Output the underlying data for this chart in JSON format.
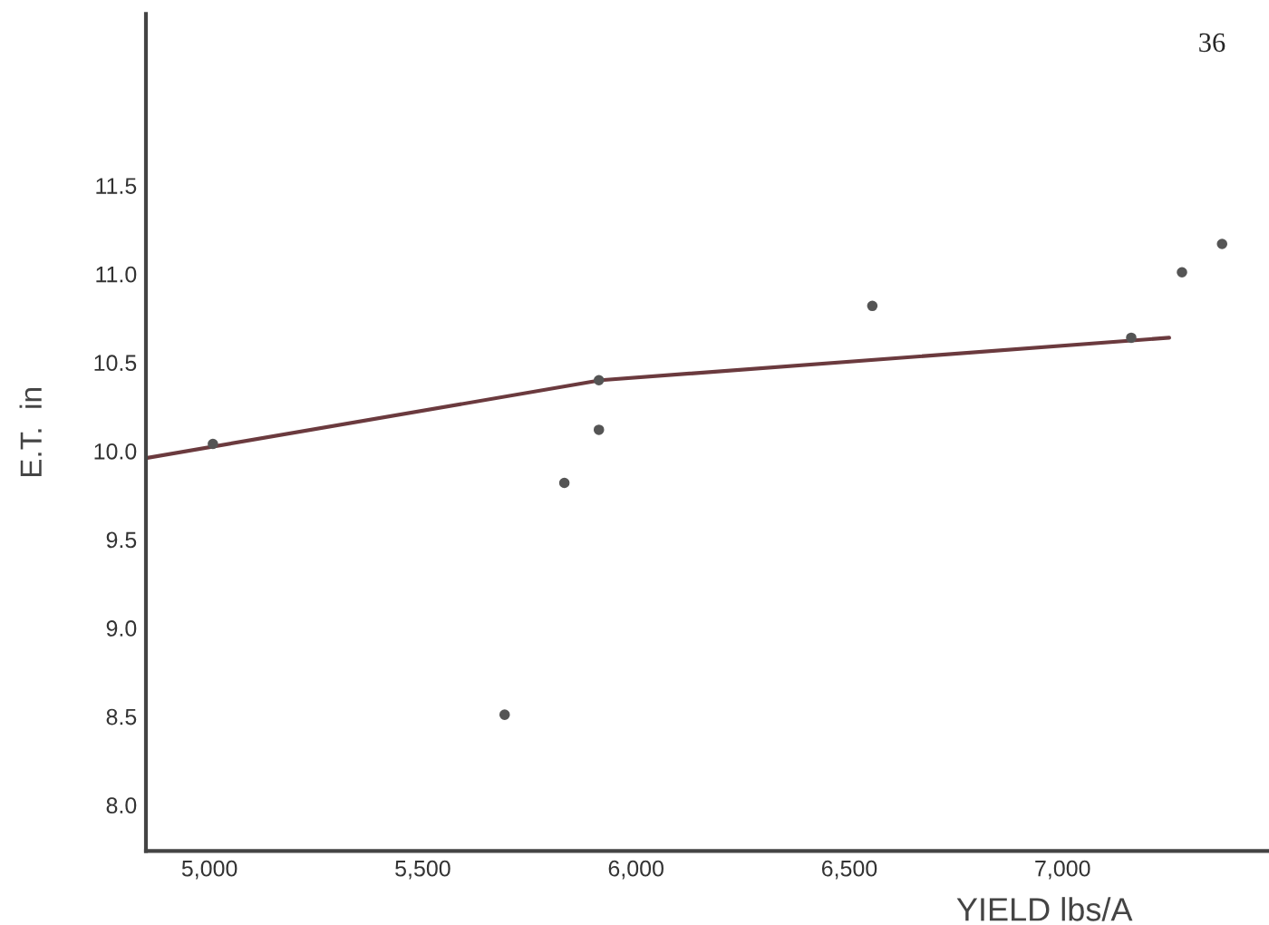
{
  "chart_data": {
    "type": "scatter",
    "xlabel": "YIELD lbs/A",
    "ylabel": "E.T.  in",
    "annotations": [
      "36"
    ],
    "xlim": [
      4851,
      7484
    ],
    "ylim": [
      7.74,
      12.47
    ],
    "xticks": [
      {
        "value": 5000,
        "label": "5,000"
      },
      {
        "value": 5500,
        "label": "5,500"
      },
      {
        "value": 6000,
        "label": "6,000"
      },
      {
        "value": 6500,
        "label": "6,500"
      },
      {
        "value": 7000,
        "label": "7,000"
      }
    ],
    "yticks": [
      {
        "value": 8.0,
        "label": "8.0"
      },
      {
        "value": 8.5,
        "label": "8.5"
      },
      {
        "value": 9.0,
        "label": "9.0"
      },
      {
        "value": 9.5,
        "label": "9.5"
      },
      {
        "value": 10.0,
        "label": "10.0"
      },
      {
        "value": 10.5,
        "label": "10.5"
      },
      {
        "value": 11.0,
        "label": "11.0"
      },
      {
        "value": 11.5,
        "label": "11.5"
      }
    ],
    "grid": false,
    "marker": "circle",
    "series": [
      {
        "color": "#555555",
        "x": [
          5008,
          5692,
          5832,
          5913,
          5913,
          6554,
          7161,
          7280,
          7374
        ],
        "values": [
          10.04,
          8.51,
          9.82,
          10.12,
          10.4,
          10.82,
          10.64,
          11.01,
          11.17
        ]
      },
      {
        "type": "line",
        "color": "#6b3a3e",
        "marker": "none",
        "x": [
          4851,
          5917,
          7250
        ],
        "values": [
          9.96,
          10.4,
          10.64
        ]
      }
    ]
  }
}
